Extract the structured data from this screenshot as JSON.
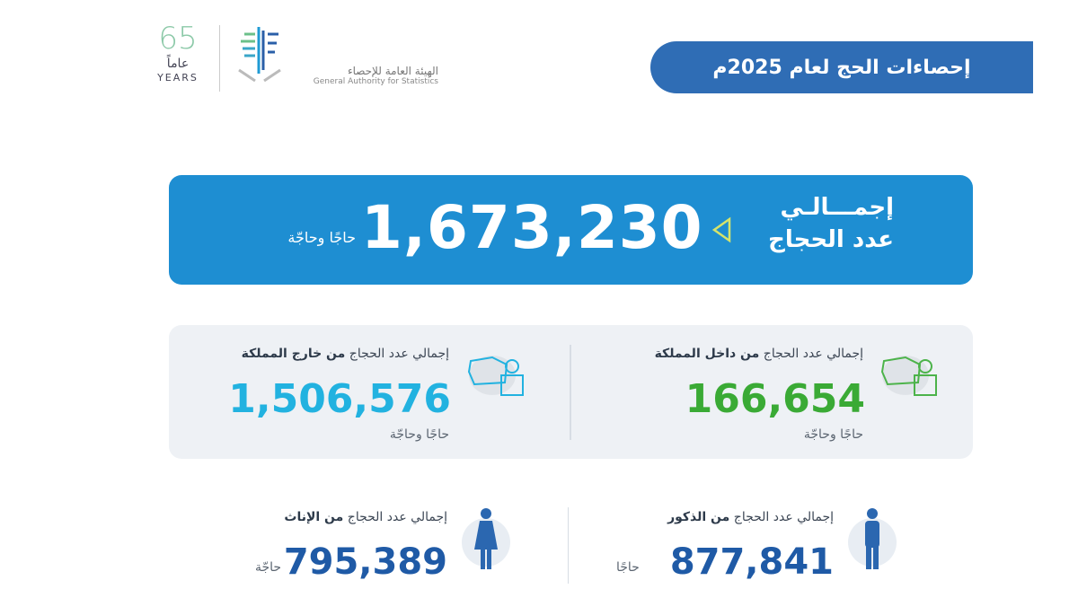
{
  "header": {
    "title": "إحصاءات الحج لعام 2025م",
    "logo": {
      "years_number": "65",
      "years_ar": "عاماً",
      "years_en": "YEARS",
      "org_ar": "الهيئة العامة للإحصاء",
      "org_en": "General Authority for Statistics"
    }
  },
  "total": {
    "label_line1": "إجمـــالـي",
    "label_line2": "عدد الحجاج",
    "value": "1,673,230",
    "unit": "حاجًا وحاجّة",
    "arrow_icon": "triangle-left-icon"
  },
  "domestic": {
    "label_prefix": "إجمالي عدد الحجاج",
    "label_bold": "من داخل المملكة",
    "value": "166,654",
    "unit": "حاجًا وحاجّة",
    "color": "#3aaa35",
    "icon": "pilgrim-kaaba-icon"
  },
  "foreign": {
    "label_prefix": "إجمالي عدد الحجاج",
    "label_bold": "من خارج المملكة",
    "value": "1,506,576",
    "unit": "حاجًا وحاجّة",
    "color": "#22b2e0",
    "icon": "pilgrim-kaaba-icon"
  },
  "males": {
    "label_prefix": "إجمالي عدد الحجاج",
    "label_bold": "من الذكور",
    "value": "877,841",
    "unit": "حاجًا",
    "color": "#1f5aa6",
    "icon": "male-icon"
  },
  "females": {
    "label_prefix": "إجمالي عدد الحجاج",
    "label_bold": "من الإناث",
    "value": "795,389",
    "unit": "حاجّة",
    "color": "#1f5aa6",
    "icon": "female-icon"
  }
}
